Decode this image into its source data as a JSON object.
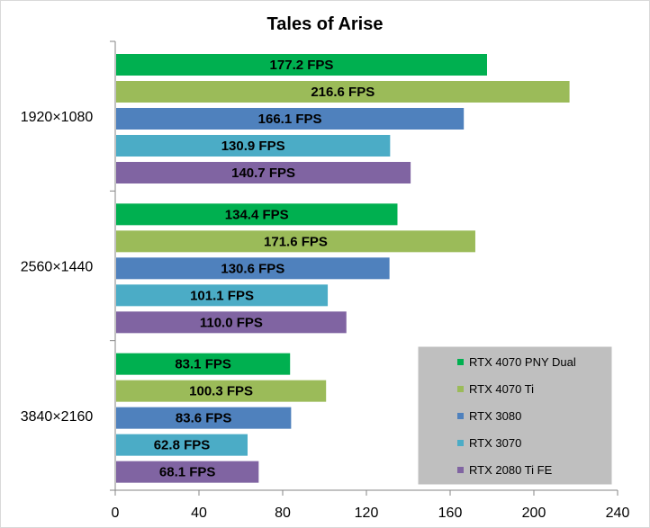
{
  "chart_data": {
    "type": "bar",
    "orientation": "horizontal",
    "title": "Tales of Arise",
    "categories": [
      "1920×1080",
      "2560×1440",
      "3840×2160"
    ],
    "xlim": [
      0,
      240
    ],
    "x_ticks": [
      0,
      40,
      80,
      120,
      160,
      200,
      240
    ],
    "value_suffix": " FPS",
    "grid": false,
    "legend_position": "bottom-right",
    "series": [
      {
        "name": "RTX 4070 PNY Dual",
        "color": "#00b050",
        "values": [
          177.2,
          134.4,
          83.1
        ],
        "labels": [
          "177.2 FPS",
          "134.4 FPS",
          "83.1 FPS"
        ]
      },
      {
        "name": "RTX 4070 Ti",
        "color": "#9bbb59",
        "values": [
          216.6,
          171.6,
          100.3
        ],
        "labels": [
          "216.6 FPS",
          "171.6 FPS",
          "100.3 FPS"
        ]
      },
      {
        "name": "RTX 3080",
        "color": "#4f81bd",
        "values": [
          166.1,
          130.6,
          83.6
        ],
        "labels": [
          "166.1 FPS",
          "130.6 FPS",
          "83.6 FPS"
        ]
      },
      {
        "name": "RTX 3070",
        "color": "#4bacc6",
        "values": [
          130.9,
          101.1,
          62.8
        ],
        "labels": [
          "130.9 FPS",
          "101.1 FPS",
          "62.8 FPS"
        ]
      },
      {
        "name": "RTX 2080 Ti FE",
        "color": "#8064a2",
        "values": [
          140.7,
          110.0,
          68.1
        ],
        "labels": [
          "140.7 FPS",
          "110.0 FPS",
          "68.1 FPS"
        ]
      }
    ]
  }
}
